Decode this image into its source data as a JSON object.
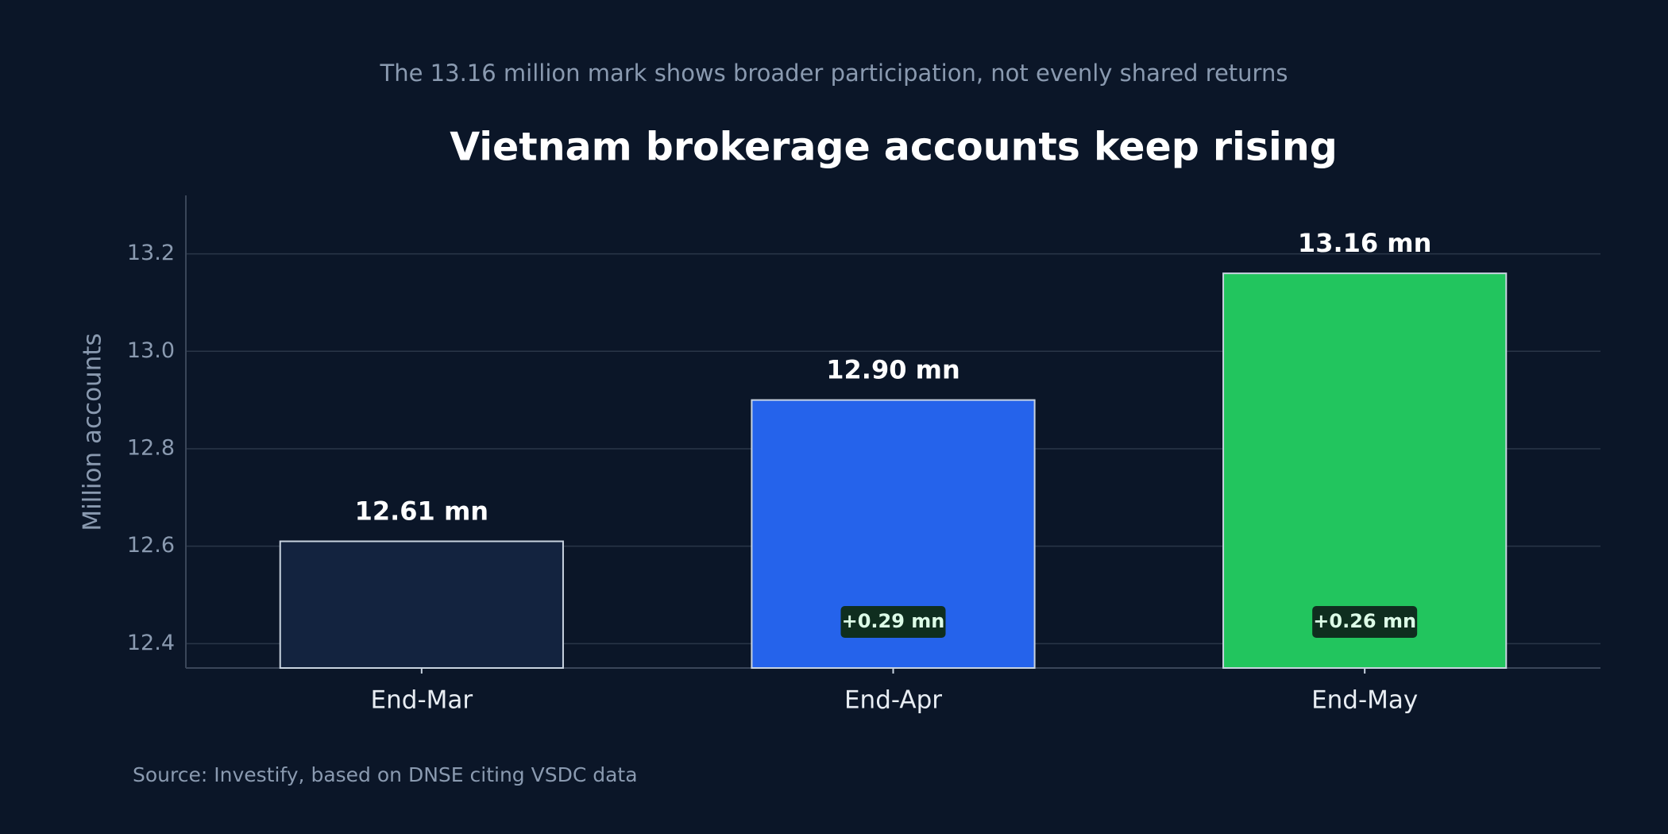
{
  "chart_data": {
    "type": "bar",
    "subtitle": "The 13.16 million mark shows broader participation, not evenly shared returns",
    "title": "Vietnam brokerage accounts keep rising",
    "y_label": "Million accounts",
    "source": "Source: Investify, based on DNSE citing VSDC data",
    "categories": [
      "End-Mar",
      "End-Apr",
      "End-May"
    ],
    "values": [
      12.61,
      12.9,
      13.16
    ],
    "value_labels": [
      "12.61 mn",
      "12.90 mn",
      "13.16 mn"
    ],
    "colors": [
      "#13233f",
      "#2563eb",
      "#22c55e"
    ],
    "annotations": [
      {
        "category": "End-Apr",
        "text": "+0.29 mn"
      },
      {
        "category": "End-May",
        "text": "+0.26 mn"
      }
    ],
    "ylim": [
      12.35,
      13.32
    ],
    "yticks": [
      12.4,
      12.6,
      12.8,
      {
        "value": 13,
        "label": "13.0"
      },
      13.2
    ],
    "grid": true
  }
}
